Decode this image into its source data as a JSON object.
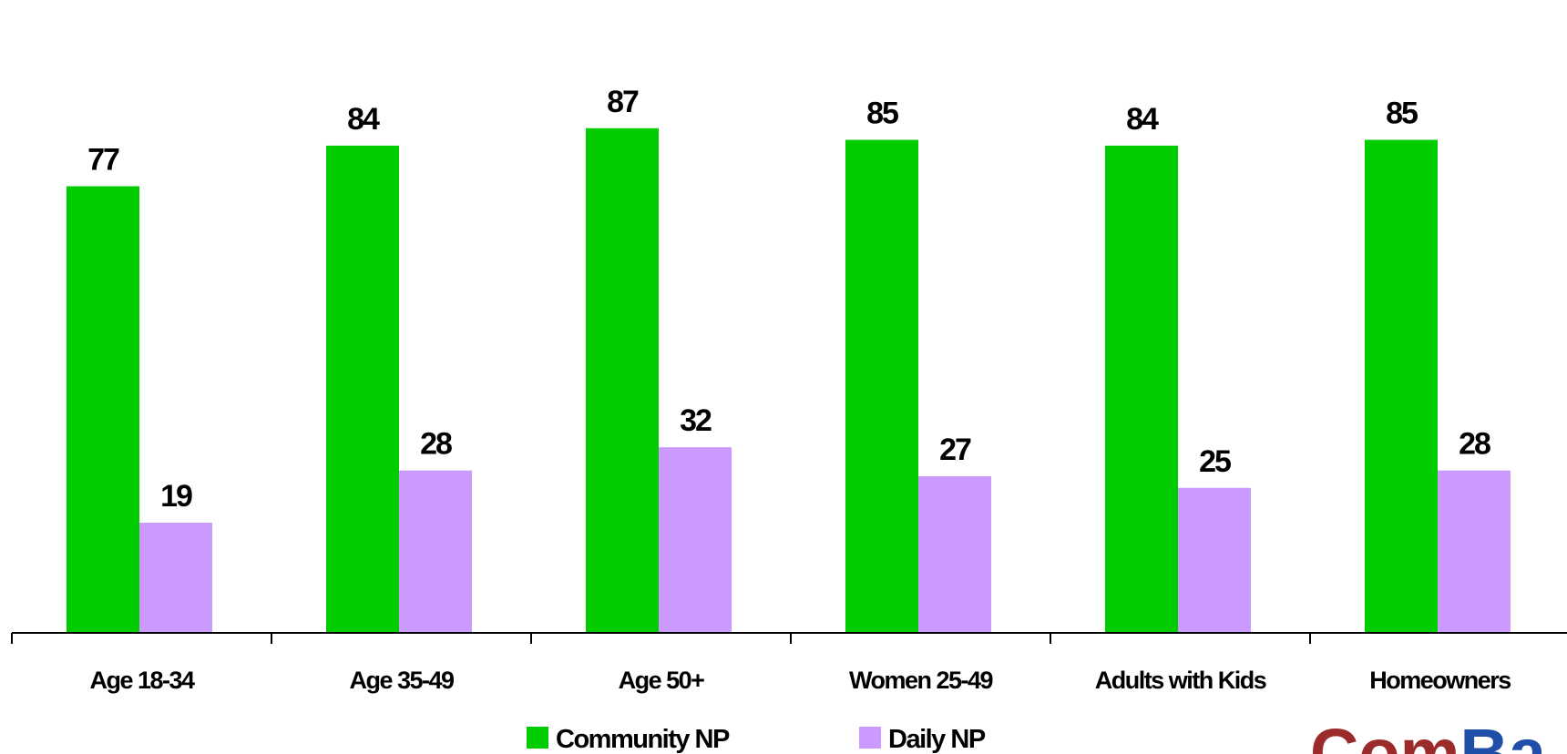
{
  "chart_data": {
    "type": "bar",
    "title": "",
    "xlabel": "",
    "ylabel": "",
    "categories": [
      "Age 18-34",
      "Age 35-49",
      "Age 50+",
      "Women 25-49",
      "Adults with Kids",
      "Homeowners"
    ],
    "series": [
      {
        "name": "Community NP",
        "color": "#00cc00",
        "values": [
          77,
          84,
          87,
          85,
          84,
          85
        ]
      },
      {
        "name": "Daily NP",
        "color": "#cc99ff",
        "values": [
          19,
          28,
          32,
          27,
          25,
          28
        ]
      }
    ],
    "ylim": [
      0,
      100
    ],
    "grid": false,
    "legend_position": "bottom"
  },
  "logo": {
    "text_part1": "Com",
    "text_part2": "Ba",
    "color1": "#9b2a2a",
    "color2": "#1f4fa8"
  }
}
